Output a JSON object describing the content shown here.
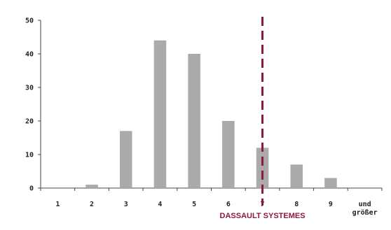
{
  "chart_data": {
    "type": "bar",
    "title": "",
    "xlabel": "",
    "ylabel": "",
    "categories": [
      "1",
      "2",
      "3",
      "4",
      "5",
      "6",
      "7",
      "8",
      "9",
      "und größer"
    ],
    "values": [
      0,
      1,
      17,
      44,
      40,
      20,
      12,
      7,
      3,
      0
    ],
    "ylim": [
      0,
      50
    ],
    "yticks": [
      0,
      10,
      20,
      30,
      40,
      50
    ],
    "grid": false,
    "legend": "none",
    "bar_color": "#aaaaaa",
    "marker": {
      "category": "7",
      "label": "DASSAULT SYSTEMES",
      "style": "dashed",
      "color": "#8b1a3a"
    }
  }
}
